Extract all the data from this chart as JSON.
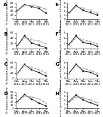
{
  "x_labels": [
    "Mar\n2011",
    "Aug\n2011",
    "Mar\n2012",
    "Sep\n2012",
    "Mar\n2013"
  ],
  "x_ticks": [
    0,
    1,
    2,
    3,
    4
  ],
  "panels": [
    {
      "label": "A",
      "ylabel": "% houses positive",
      "ylim": [
        0,
        80
      ],
      "yticks": [
        0,
        20,
        40,
        60,
        80
      ],
      "intervention": [
        40,
        72,
        62,
        52,
        28
      ],
      "control": [
        38,
        68,
        68,
        62,
        48
      ]
    },
    {
      "label": "B",
      "ylabel": "% houses positive",
      "ylim": [
        0,
        60
      ],
      "yticks": [
        0,
        20,
        40,
        60
      ],
      "intervention": [
        10,
        48,
        22,
        12,
        4
      ],
      "control": [
        8,
        42,
        34,
        28,
        18
      ]
    },
    {
      "label": "C",
      "ylabel": "% houses positive",
      "ylim": [
        0,
        60
      ],
      "yticks": [
        0,
        20,
        40,
        60
      ],
      "intervention": [
        18,
        52,
        32,
        22,
        8
      ],
      "control": [
        16,
        48,
        40,
        33,
        20
      ]
    },
    {
      "label": "D",
      "ylabel": "% houses positive",
      "ylim": [
        0,
        50
      ],
      "yticks": [
        0,
        10,
        20,
        30,
        40,
        50
      ],
      "intervention": [
        20,
        42,
        28,
        16,
        6
      ],
      "control": [
        18,
        38,
        35,
        28,
        16
      ]
    },
    {
      "label": "E",
      "ylabel": "Mean no. per infested house",
      "ylim": [
        0,
        8
      ],
      "yticks": [
        0,
        2,
        4,
        6,
        8
      ],
      "intervention": [
        2.8,
        6.8,
        4.2,
        3.2,
        1.8
      ],
      "control": [
        2.5,
        6.2,
        5.2,
        4.2,
        2.8
      ]
    },
    {
      "label": "F",
      "ylabel": "Mean no. per infested house",
      "ylim": [
        0,
        6
      ],
      "yticks": [
        0,
        2,
        4,
        6
      ],
      "intervention": [
        1.4,
        4.8,
        2.3,
        1.8,
        0.9
      ],
      "control": [
        1.1,
        4.2,
        3.3,
        2.6,
        1.7
      ]
    },
    {
      "label": "G",
      "ylabel": "Mean no. per infested house",
      "ylim": [
        0,
        6
      ],
      "yticks": [
        0,
        2,
        4,
        6
      ],
      "intervention": [
        1.8,
        5.3,
        2.8,
        2.3,
        1.0
      ],
      "control": [
        1.6,
        4.8,
        3.8,
        3.0,
        1.8
      ]
    },
    {
      "label": "H",
      "ylabel": "Mean no. per infested house",
      "ylim": [
        0,
        4
      ],
      "yticks": [
        0,
        1,
        2,
        3,
        4
      ],
      "intervention": [
        1.6,
        3.3,
        2.0,
        1.3,
        0.7
      ],
      "control": [
        1.3,
        2.8,
        2.6,
        2.0,
        1.3
      ]
    }
  ],
  "intervention_color": "#222222",
  "control_color": "#888888",
  "marker_intervention": "s",
  "marker_control": "s",
  "linewidth": 0.7,
  "markersize": 1.8,
  "tick_fontsize": 3.0,
  "ylabel_fontsize": 3.2,
  "panel_label_fontsize": 5.0
}
